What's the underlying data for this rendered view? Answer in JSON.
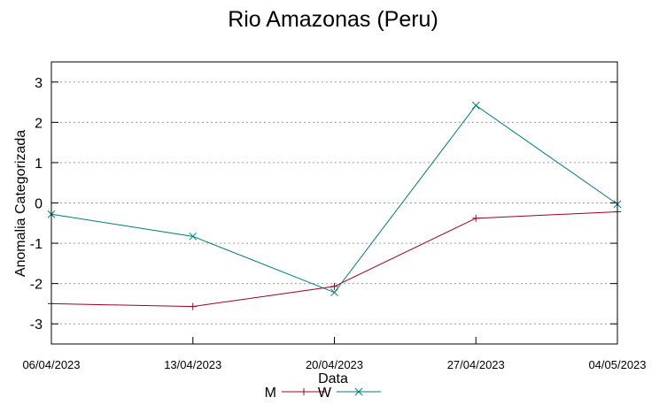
{
  "chart_data": {
    "type": "line",
    "title": "Rio Amazonas (Peru)",
    "xlabel": "Data",
    "ylabel": "Anomalia Categorizada",
    "x": [
      "06/04/2023",
      "13/04/2023",
      "20/04/2023",
      "27/04/2023",
      "04/05/2023"
    ],
    "ylim": [
      -3.5,
      3.5
    ],
    "yticks": [
      -3,
      -2,
      -1,
      0,
      1,
      2,
      3
    ],
    "grid": true,
    "legend_position": "bottom-center",
    "series": [
      {
        "name": "M",
        "color": "#a0001e",
        "marker": "plus",
        "values": [
          -2.5,
          -2.57,
          -2.07,
          -0.38,
          -0.22
        ]
      },
      {
        "name": "W",
        "color": "#007a7a",
        "marker": "x",
        "values": [
          -0.28,
          -0.83,
          -2.22,
          2.42,
          -0.03
        ]
      }
    ]
  }
}
